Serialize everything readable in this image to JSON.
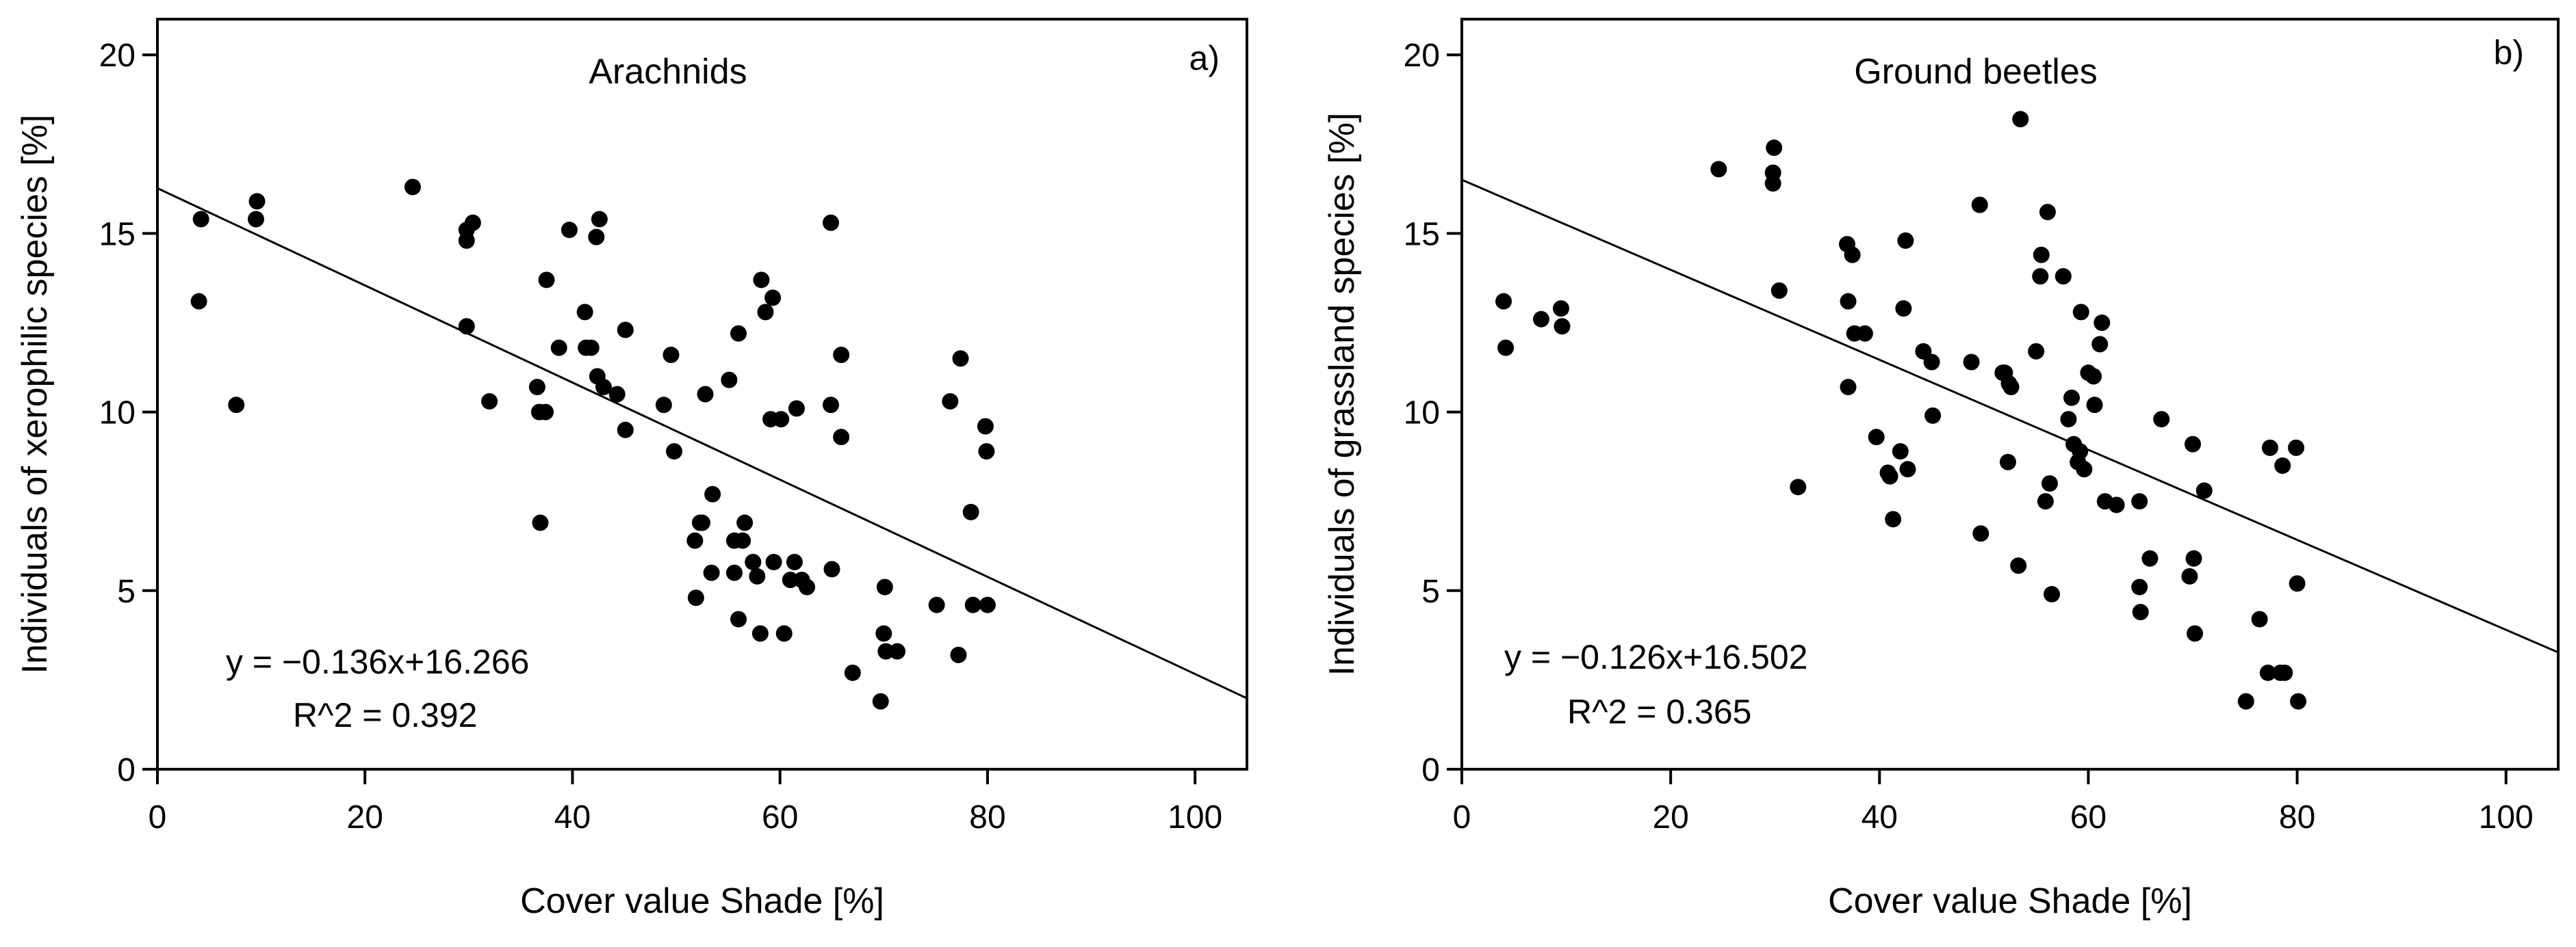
{
  "chart_data": [
    {
      "type": "scatter",
      "panel": "a)",
      "title": "Arachnids",
      "xlabel": "Cover value Shade [%]",
      "ylabel": "Individuals of xerophilic species [%]",
      "xlim": [
        0,
        105
      ],
      "ylim": [
        0,
        21
      ],
      "xticks": [
        0,
        20,
        40,
        60,
        80,
        100
      ],
      "yticks": [
        0,
        5,
        10,
        15,
        20
      ],
      "grid": false,
      "equation": "y = −0.136x+16.266",
      "r2": "R^2 = 0.392",
      "regression": {
        "slope": -0.136,
        "intercept": 16.266
      },
      "points": [
        [
          4,
          13.1
        ],
        [
          4.2,
          15.4
        ],
        [
          7.6,
          10.2
        ],
        [
          9.5,
          15.4
        ],
        [
          9.6,
          15.9
        ],
        [
          24.6,
          16.3
        ],
        [
          29.8,
          14.8
        ],
        [
          29.8,
          15.1
        ],
        [
          30.4,
          15.3
        ],
        [
          29.8,
          12.4
        ],
        [
          32,
          10.3
        ],
        [
          36.6,
          10.7
        ],
        [
          36.8,
          10
        ],
        [
          37.4,
          10
        ],
        [
          36.9,
          6.9
        ],
        [
          37.5,
          13.7
        ],
        [
          38.7,
          11.8
        ],
        [
          39.7,
          15.1
        ],
        [
          41.2,
          12.8
        ],
        [
          41.3,
          11.8
        ],
        [
          41.8,
          11.8
        ],
        [
          42.4,
          11
        ],
        [
          42.3,
          14.9
        ],
        [
          42.6,
          15.4
        ],
        [
          43,
          10.7
        ],
        [
          44.3,
          10.5
        ],
        [
          45.1,
          12.3
        ],
        [
          45.1,
          9.5
        ],
        [
          48.8,
          10.2
        ],
        [
          49.5,
          11.6
        ],
        [
          49.8,
          8.9
        ],
        [
          51.8,
          6.4
        ],
        [
          51.9,
          4.8
        ],
        [
          52.3,
          6.9
        ],
        [
          52.5,
          6.9
        ],
        [
          52.8,
          10.5
        ],
        [
          53.5,
          7.7
        ],
        [
          53.4,
          5.5
        ],
        [
          55.1,
          10.9
        ],
        [
          55.6,
          6.4
        ],
        [
          55.6,
          5.5
        ],
        [
          56,
          12.2
        ],
        [
          56,
          4.2
        ],
        [
          56.4,
          6.4
        ],
        [
          56.6,
          6.9
        ],
        [
          57.4,
          5.8
        ],
        [
          57.8,
          5.4
        ],
        [
          58.2,
          13.7
        ],
        [
          58.1,
          3.8
        ],
        [
          58.6,
          12.8
        ],
        [
          59.1,
          9.8
        ],
        [
          59.3,
          13.2
        ],
        [
          59.4,
          5.8
        ],
        [
          60.1,
          9.8
        ],
        [
          60.4,
          3.8
        ],
        [
          61,
          5.3
        ],
        [
          61.4,
          5.8
        ],
        [
          61.6,
          10.1
        ],
        [
          62.1,
          5.3
        ],
        [
          62.6,
          5.1
        ],
        [
          64.9,
          15.3
        ],
        [
          64.9,
          10.2
        ],
        [
          65,
          5.6
        ],
        [
          65.9,
          9.3
        ],
        [
          65.9,
          11.6
        ],
        [
          67,
          2.7
        ],
        [
          69.7,
          1.9
        ],
        [
          70,
          3.8
        ],
        [
          70.1,
          5.1
        ],
        [
          70.2,
          3.3
        ],
        [
          71.3,
          3.3
        ],
        [
          75.1,
          4.6
        ],
        [
          76.4,
          10.3
        ],
        [
          77.2,
          3.2
        ],
        [
          77.4,
          11.5
        ],
        [
          78.4,
          7.2
        ],
        [
          78.6,
          4.6
        ],
        [
          79.8,
          9.6
        ],
        [
          79.9,
          8.9
        ],
        [
          80,
          4.6
        ]
      ]
    },
    {
      "type": "scatter",
      "panel": "b)",
      "title": "Ground beetles",
      "xlabel": "Cover value Shade [%]",
      "ylabel": "Individuals of grassland species [%]",
      "xlim": [
        0,
        105
      ],
      "ylim": [
        0,
        21
      ],
      "xticks": [
        0,
        20,
        40,
        60,
        80,
        100
      ],
      "yticks": [
        0,
        5,
        10,
        15,
        20
      ],
      "grid": false,
      "equation": "y = −0.126x+16.502",
      "r2": "R^2 = 0.365",
      "regression": {
        "slope": -0.126,
        "intercept": 16.502
      },
      "points": [
        [
          4,
          13.1
        ],
        [
          4.2,
          11.8
        ],
        [
          7.6,
          12.6
        ],
        [
          9.5,
          12.9
        ],
        [
          9.6,
          12.4
        ],
        [
          24.6,
          16.8
        ],
        [
          29.8,
          16.4
        ],
        [
          29.8,
          16.7
        ],
        [
          29.9,
          17.4
        ],
        [
          30.4,
          13.4
        ],
        [
          32.2,
          7.9
        ],
        [
          36.9,
          14.7
        ],
        [
          37,
          13.1
        ],
        [
          37,
          10.7
        ],
        [
          37.4,
          14.4
        ],
        [
          37.6,
          12.2
        ],
        [
          38.6,
          12.2
        ],
        [
          39.7,
          9.3
        ],
        [
          40.8,
          8.3
        ],
        [
          41,
          8.2
        ],
        [
          41.3,
          7
        ],
        [
          42,
          8.9
        ],
        [
          42.3,
          12.9
        ],
        [
          42.5,
          14.8
        ],
        [
          42.7,
          8.4
        ],
        [
          44.2,
          11.7
        ],
        [
          45,
          11.4
        ],
        [
          45.1,
          9.9
        ],
        [
          48.8,
          11.4
        ],
        [
          49.6,
          15.8
        ],
        [
          49.7,
          6.6
        ],
        [
          51.8,
          11.1
        ],
        [
          52,
          11.1
        ],
        [
          52.3,
          8.6
        ],
        [
          52.4,
          10.8
        ],
        [
          52.6,
          10.7
        ],
        [
          53.3,
          5.7
        ],
        [
          53.5,
          18.2
        ],
        [
          55,
          11.7
        ],
        [
          55.4,
          13.8
        ],
        [
          55.5,
          14.4
        ],
        [
          55.9,
          7.5
        ],
        [
          56.1,
          15.6
        ],
        [
          56.3,
          8
        ],
        [
          56.5,
          4.9
        ],
        [
          57.6,
          13.8
        ],
        [
          58.1,
          9.8
        ],
        [
          58.4,
          10.4
        ],
        [
          58.6,
          9.1
        ],
        [
          59,
          8.6
        ],
        [
          59.2,
          8.9
        ],
        [
          59.3,
          12.8
        ],
        [
          59.6,
          8.4
        ],
        [
          60,
          11.1
        ],
        [
          60.5,
          11
        ],
        [
          60.6,
          10.2
        ],
        [
          61.1,
          11.9
        ],
        [
          61.3,
          12.5
        ],
        [
          61.6,
          7.5
        ],
        [
          62.7,
          7.4
        ],
        [
          64.9,
          7.5
        ],
        [
          64.9,
          5.1
        ],
        [
          65,
          4.4
        ],
        [
          65.9,
          5.9
        ],
        [
          67,
          9.8
        ],
        [
          69.7,
          5.4
        ],
        [
          70,
          9.1
        ],
        [
          70.1,
          5.9
        ],
        [
          70.2,
          3.8
        ],
        [
          71.1,
          7.8
        ],
        [
          75.1,
          1.9
        ],
        [
          76.4,
          4.2
        ],
        [
          77.2,
          2.7
        ],
        [
          77.4,
          9
        ],
        [
          78.4,
          2.7
        ],
        [
          78.6,
          8.5
        ],
        [
          78.8,
          2.7
        ],
        [
          79.9,
          9
        ],
        [
          80,
          5.2
        ],
        [
          80.1,
          1.9
        ]
      ]
    }
  ]
}
